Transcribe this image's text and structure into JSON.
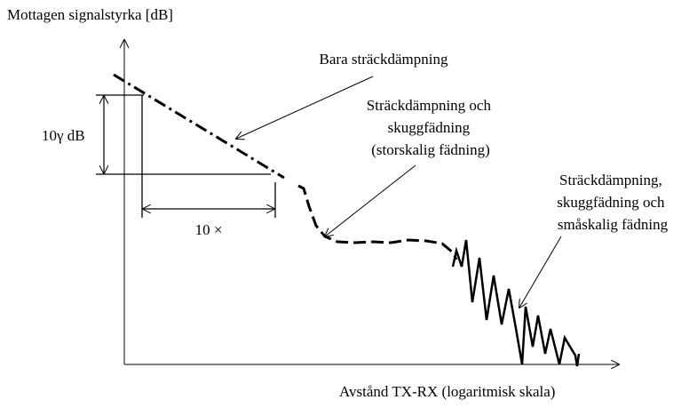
{
  "axes": {
    "y_label": "Mottagen signalstyrka [dB]",
    "x_label": "Avstånd TX-RX (logaritmisk skala)"
  },
  "annotations": [
    {
      "lines": [
        "Bara sträckdämpning"
      ]
    },
    {
      "lines": [
        "Sträckdämpning och",
        "skuggfädning",
        "(storskalig fädning)"
      ]
    },
    {
      "lines": [
        "Sträckdämpning,",
        "skuggfädning och",
        "småskalig fädning"
      ]
    }
  ],
  "slope": {
    "db_label": "10γ dB",
    "decade_label": "10 ×"
  }
}
